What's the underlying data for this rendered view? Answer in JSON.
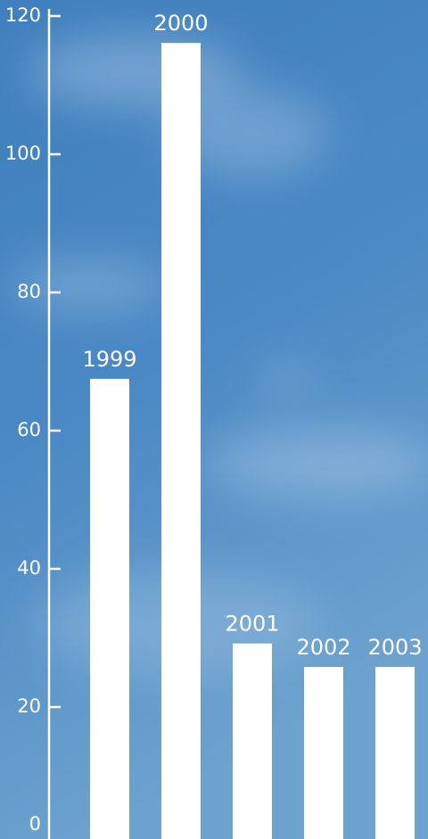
{
  "chart_data": {
    "type": "bar",
    "categories": [
      "1999",
      "2000",
      "2001",
      "2002",
      "2003"
    ],
    "values": [
      67.5,
      116.1,
      29.2,
      25.8,
      25.8
    ],
    "color": "#ffffff",
    "ylim": [
      0,
      120
    ],
    "yticks": [
      0,
      20,
      40,
      60,
      80,
      100,
      120
    ],
    "grid": false
  }
}
